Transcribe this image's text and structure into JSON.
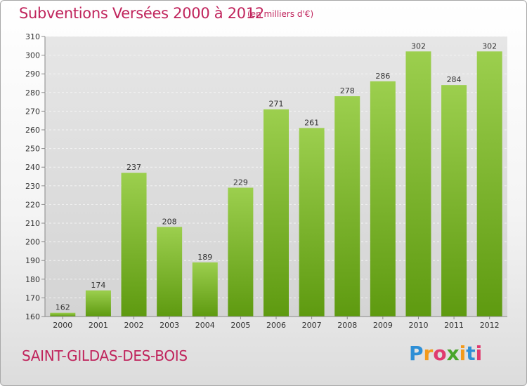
{
  "header": {
    "title": "Subventions Versées 2000 à 2012",
    "subtitle": "(en milliers d'€)"
  },
  "footer": {
    "place": "SAINT-GILDAS-DES-BOIS",
    "logo_text": "Proxiti",
    "logo_colors": [
      "#2e8fd6",
      "#f39a1b",
      "#e03a6e",
      "#4aa52a",
      "#f39a1b",
      "#2e8fd6",
      "#e03a6e"
    ]
  },
  "chart_data": {
    "type": "bar",
    "title": "Subventions Versées 2000 à 2012",
    "subtitle": "(en milliers d'€)",
    "categories": [
      "2000",
      "2001",
      "2002",
      "2003",
      "2004",
      "2005",
      "2006",
      "2007",
      "2008",
      "2009",
      "2010",
      "2011",
      "2012"
    ],
    "values": [
      162,
      174,
      237,
      208,
      189,
      229,
      271,
      261,
      278,
      286,
      302,
      284,
      302
    ],
    "ylim": [
      160,
      310
    ],
    "yticks": [
      160,
      170,
      180,
      190,
      200,
      210,
      220,
      230,
      240,
      250,
      260,
      270,
      280,
      290,
      300,
      310
    ],
    "grid": true,
    "bar_color_top": "#9ccf4e",
    "bar_color_bottom": "#5e9a10"
  }
}
